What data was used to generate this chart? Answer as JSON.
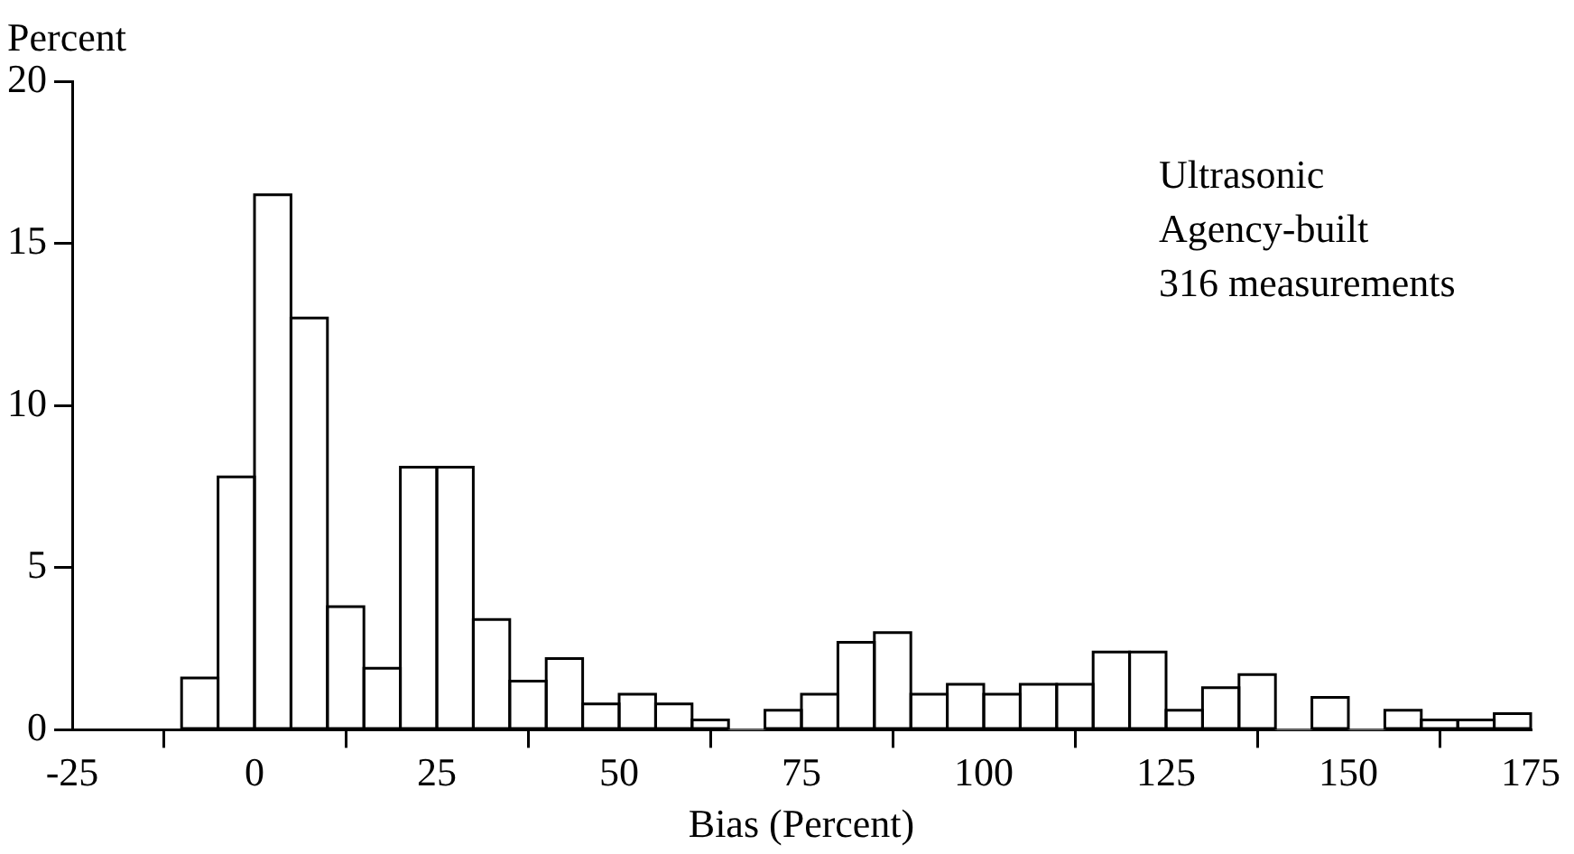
{
  "chart_data": {
    "type": "histogram",
    "xlabel": "Bias (Percent)",
    "ylabel": "Percent",
    "annotations": [
      "Ultrasonic",
      "Agency-built",
      "316 measurements"
    ],
    "bins": [
      -10,
      -5,
      0,
      5,
      10,
      15,
      20,
      25,
      30,
      35,
      40,
      45,
      50,
      55,
      60,
      65,
      70,
      75,
      80,
      85,
      90,
      95,
      100,
      105,
      110,
      115,
      120,
      125,
      130,
      135,
      140,
      145,
      150,
      155,
      160,
      165,
      170,
      175
    ],
    "values": [
      1.6,
      7.8,
      16.5,
      12.7,
      3.8,
      1.9,
      8.1,
      8.1,
      3.4,
      1.5,
      2.2,
      0.8,
      1.1,
      0.8,
      0.3,
      0,
      0.6,
      1.1,
      2.7,
      3.0,
      1.1,
      1.4,
      1.1,
      1.4,
      1.4,
      2.4,
      2.4,
      0.6,
      1.3,
      1.7,
      0,
      1.0,
      0,
      0.6,
      0.3,
      0.3,
      0.5
    ],
    "color": "#ffffff",
    "xlim": [
      -25,
      175
    ],
    "xticks": [
      -25,
      0,
      25,
      50,
      75,
      100,
      125,
      150,
      175
    ],
    "ylim": [
      0,
      20
    ],
    "yticks": [
      0,
      5,
      10,
      15,
      20
    ],
    "grid": false,
    "legend": false
  }
}
